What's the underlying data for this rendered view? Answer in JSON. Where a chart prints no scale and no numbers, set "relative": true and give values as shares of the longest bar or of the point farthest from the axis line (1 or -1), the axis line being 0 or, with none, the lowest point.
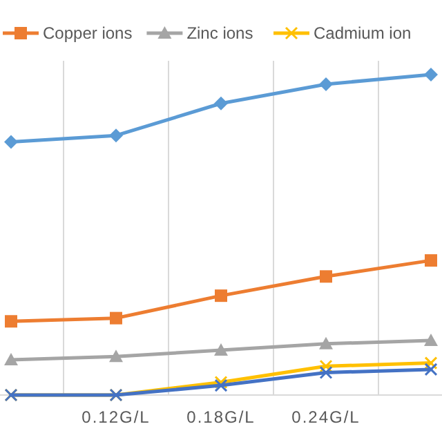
{
  "chart_data": {
    "type": "line",
    "relative": true,
    "categories": [
      null,
      "0.12G/L",
      "0.18G/L",
      "0.24G/L",
      null
    ],
    "grid": "x",
    "legend": "top",
    "series": [
      {
        "color": "#5b9bd5",
        "marker": "diamond",
        "values": [
          0.79,
          0.81,
          0.91,
          0.97,
          1
        ]
      },
      {
        "name": "Copper ions",
        "color": "#ed7d31",
        "marker": "square",
        "values": [
          0.23,
          0.24,
          0.31,
          0.37,
          0.42
        ]
      },
      {
        "name": "Zinc ions",
        "color": "#a5a5a5",
        "marker": "triangle",
        "values": [
          0.11,
          0.12,
          0.14,
          0.16,
          0.17
        ]
      },
      {
        "name": "Cadmium ion",
        "color": "#ffc000",
        "marker": "cross",
        "values": [
          0,
          0,
          0.04,
          0.09,
          0.1
        ]
      },
      {
        "color": "#4472c4",
        "marker": "cross",
        "values": [
          0,
          0,
          0.03,
          0.07,
          0.08
        ]
      }
    ]
  }
}
